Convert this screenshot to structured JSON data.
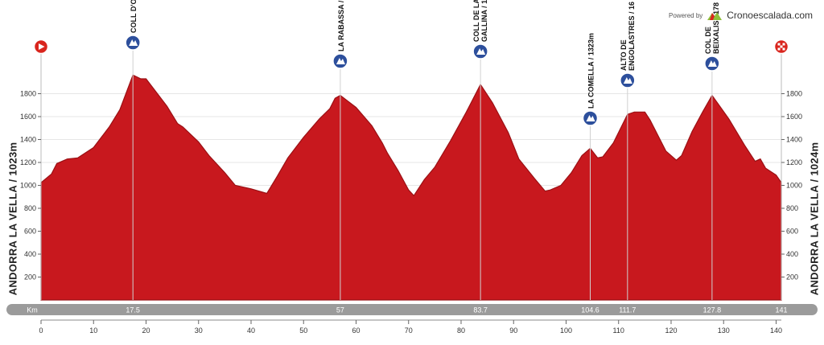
{
  "brand": {
    "powered_by": "Powered by",
    "name": "Cronoescalada.com"
  },
  "start_label": "ANDORRA LA VELLA / 1023m",
  "finish_label": "ANDORRA LA VELLA / 1024m",
  "colors": {
    "profile_fill": "#c8181e",
    "profile_edge": "#9a1014",
    "climb_marker": "#2d4f9c",
    "start_marker": "#d9251d",
    "finish_marker": "#d9251d",
    "km_bar": "#9b9b9b"
  },
  "icons": {
    "start": "play-icon",
    "finish": "checkered-flag-icon",
    "climb": "mountain-category-icon"
  },
  "chart_data": {
    "type": "area",
    "title": "",
    "xlabel": "",
    "ylabel": "",
    "xlim": [
      0,
      141
    ],
    "ylim": [
      0,
      2000
    ],
    "x_ticks": [
      0,
      10,
      20,
      30,
      40,
      50,
      60,
      70,
      80,
      90,
      100,
      110,
      120,
      130,
      140
    ],
    "y_ticks": [
      200,
      400,
      600,
      800,
      1000,
      1200,
      1400,
      1600,
      1800
    ],
    "km_bar_label": "Km",
    "km_bar_marks": [
      "17.5",
      "57",
      "83.7",
      "104.6",
      "111.7",
      "127.8",
      "141"
    ],
    "series": [
      {
        "x": [
          0,
          2,
          3,
          5,
          7,
          10,
          13,
          15,
          17.5,
          19,
          20,
          24,
          26,
          27,
          30,
          32,
          35,
          37,
          40,
          43,
          45,
          47,
          50,
          53,
          55,
          56,
          57,
          60,
          63,
          65,
          66,
          68,
          70,
          71,
          73,
          75,
          78,
          81,
          83.7,
          86,
          89,
          91,
          94,
          96,
          97,
          99,
          101,
          103,
          104.6,
          106,
          107,
          109,
          111.7,
          113,
          115,
          116,
          119,
          121,
          122,
          124,
          126,
          127.8,
          131,
          134,
          136,
          137,
          138,
          140,
          141
        ],
        "y": [
          1023,
          1100,
          1190,
          1230,
          1240,
          1330,
          1510,
          1660,
          1963,
          1930,
          1930,
          1690,
          1540,
          1510,
          1380,
          1260,
          1110,
          1000,
          970,
          930,
          1080,
          1240,
          1420,
          1580,
          1670,
          1760,
          1785,
          1680,
          1520,
          1370,
          1280,
          1130,
          960,
          910,
          1050,
          1160,
          1390,
          1640,
          1880,
          1720,
          1460,
          1230,
          1060,
          950,
          960,
          1000,
          1110,
          1260,
          1323,
          1240,
          1250,
          1370,
          1620,
          1640,
          1640,
          1570,
          1300,
          1220,
          1260,
          1470,
          1640,
          1785,
          1580,
          1350,
          1210,
          1230,
          1150,
          1090,
          1024
        ]
      }
    ],
    "climbs": [
      {
        "km": 17.5,
        "label": "COLL D'O"
      },
      {
        "km": 57,
        "label": "LA RABASSA /"
      },
      {
        "km": 83.7,
        "label": [
          "COLL DE LA",
          "GALLINA / 1"
        ]
      },
      {
        "km": 104.6,
        "label": "LA COMELLA / 1323m"
      },
      {
        "km": 111.7,
        "label": [
          "ALTO DE",
          "ENGOLASTRES / 16"
        ]
      },
      {
        "km": 127.8,
        "label": [
          "COL DE",
          "BEIXALIS / 178"
        ]
      }
    ]
  }
}
